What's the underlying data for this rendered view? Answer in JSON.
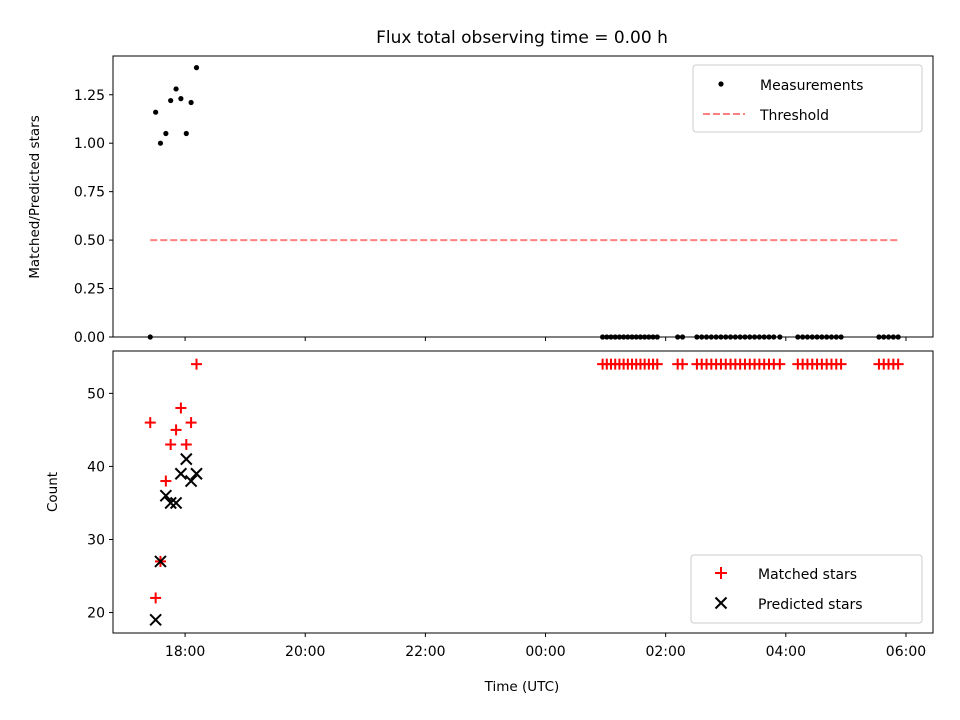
{
  "chart_data": {
    "title": "Flux total observing time = 0.00 h",
    "xlabel": "Time (UTC)",
    "x_unit": "hours since 00:00 (negative = previous evening)",
    "xlim": [
      -7.2,
      6.45
    ],
    "xticks": [
      {
        "value": -6,
        "label": "18:00"
      },
      {
        "value": -4,
        "label": "20:00"
      },
      {
        "value": -2,
        "label": "22:00"
      },
      {
        "value": 0,
        "label": "00:00"
      },
      {
        "value": 2,
        "label": "02:00"
      },
      {
        "value": 4,
        "label": "04:00"
      },
      {
        "value": 6,
        "label": "06:00"
      }
    ],
    "top": {
      "type": "scatter",
      "ylabel": "Matched/Predicted stars",
      "ylim": [
        0,
        1.45
      ],
      "yticks": [
        {
          "value": 0,
          "label": "0.00"
        },
        {
          "value": 0.25,
          "label": "0.25"
        },
        {
          "value": 0.5,
          "label": "0.50"
        },
        {
          "value": 0.75,
          "label": "0.75"
        },
        {
          "value": 1.0,
          "label": "1.00"
        },
        {
          "value": 1.25,
          "label": "1.25"
        }
      ],
      "legend": {
        "position": "top-right",
        "entries": [
          "Measurements",
          "Threshold"
        ]
      },
      "series": [
        {
          "name": "Measurements",
          "color": "#000000",
          "marker": "dot",
          "points": [
            [
              -6.58,
              0.0
            ],
            [
              -6.49,
              1.16
            ],
            [
              -6.41,
              1.0
            ],
            [
              -6.32,
              1.05
            ],
            [
              -6.24,
              1.22
            ],
            [
              -6.15,
              1.28
            ],
            [
              -6.07,
              1.23
            ],
            [
              -5.98,
              1.05
            ],
            [
              -5.9,
              1.21
            ],
            [
              -5.81,
              1.39
            ],
            [
              0.95,
              0.0
            ],
            [
              1.02,
              0.0
            ],
            [
              1.09,
              0.0
            ],
            [
              1.16,
              0.0
            ],
            [
              1.23,
              0.0
            ],
            [
              1.3,
              0.0
            ],
            [
              1.37,
              0.0
            ],
            [
              1.44,
              0.0
            ],
            [
              1.51,
              0.0
            ],
            [
              1.58,
              0.0
            ],
            [
              1.65,
              0.0
            ],
            [
              1.72,
              0.0
            ],
            [
              1.79,
              0.0
            ],
            [
              1.86,
              0.0
            ],
            [
              2.2,
              0.0
            ],
            [
              2.28,
              0.0
            ],
            [
              2.52,
              0.0
            ],
            [
              2.6,
              0.0
            ],
            [
              2.68,
              0.0
            ],
            [
              2.76,
              0.0
            ],
            [
              2.84,
              0.0
            ],
            [
              2.92,
              0.0
            ],
            [
              3.0,
              0.0
            ],
            [
              3.08,
              0.0
            ],
            [
              3.16,
              0.0
            ],
            [
              3.24,
              0.0
            ],
            [
              3.32,
              0.0
            ],
            [
              3.4,
              0.0
            ],
            [
              3.48,
              0.0
            ],
            [
              3.56,
              0.0
            ],
            [
              3.64,
              0.0
            ],
            [
              3.72,
              0.0
            ],
            [
              3.8,
              0.0
            ],
            [
              3.9,
              0.0
            ],
            [
              4.2,
              0.0
            ],
            [
              4.28,
              0.0
            ],
            [
              4.36,
              0.0
            ],
            [
              4.44,
              0.0
            ],
            [
              4.52,
              0.0
            ],
            [
              4.6,
              0.0
            ],
            [
              4.68,
              0.0
            ],
            [
              4.76,
              0.0
            ],
            [
              4.84,
              0.0
            ],
            [
              4.92,
              0.0
            ],
            [
              5.55,
              0.0
            ],
            [
              5.63,
              0.0
            ],
            [
              5.71,
              0.0
            ],
            [
              5.79,
              0.0
            ],
            [
              5.87,
              0.0
            ]
          ]
        },
        {
          "name": "Threshold",
          "color": "#ff8080",
          "style": "dashed",
          "points": [
            [
              -6.58,
              0.5
            ],
            [
              5.87,
              0.5
            ]
          ]
        }
      ]
    },
    "bottom": {
      "type": "scatter",
      "ylabel": "Count",
      "ylim": [
        17.2,
        55.8
      ],
      "yticks": [
        {
          "value": 20,
          "label": "20"
        },
        {
          "value": 30,
          "label": "30"
        },
        {
          "value": 40,
          "label": "40"
        },
        {
          "value": 50,
          "label": "50"
        }
      ],
      "legend": {
        "position": "bottom-right",
        "entries": [
          "Matched stars",
          "Predicted stars"
        ]
      },
      "series": [
        {
          "name": "Matched stars",
          "color": "#ff0000",
          "marker": "plus",
          "points": [
            [
              -6.58,
              46
            ],
            [
              -6.49,
              22
            ],
            [
              -6.41,
              27
            ],
            [
              -6.32,
              38
            ],
            [
              -6.24,
              43
            ],
            [
              -6.15,
              45
            ],
            [
              -6.07,
              48
            ],
            [
              -5.98,
              43
            ],
            [
              -5.9,
              46
            ],
            [
              -5.81,
              54
            ],
            [
              0.95,
              54
            ],
            [
              1.02,
              54
            ],
            [
              1.09,
              54
            ],
            [
              1.16,
              54
            ],
            [
              1.23,
              54
            ],
            [
              1.3,
              54
            ],
            [
              1.37,
              54
            ],
            [
              1.44,
              54
            ],
            [
              1.51,
              54
            ],
            [
              1.58,
              54
            ],
            [
              1.65,
              54
            ],
            [
              1.72,
              54
            ],
            [
              1.79,
              54
            ],
            [
              1.86,
              54
            ],
            [
              2.2,
              54
            ],
            [
              2.28,
              54
            ],
            [
              2.52,
              54
            ],
            [
              2.6,
              54
            ],
            [
              2.68,
              54
            ],
            [
              2.76,
              54
            ],
            [
              2.84,
              54
            ],
            [
              2.92,
              54
            ],
            [
              3.0,
              54
            ],
            [
              3.08,
              54
            ],
            [
              3.16,
              54
            ],
            [
              3.24,
              54
            ],
            [
              3.32,
              54
            ],
            [
              3.4,
              54
            ],
            [
              3.48,
              54
            ],
            [
              3.56,
              54
            ],
            [
              3.64,
              54
            ],
            [
              3.72,
              54
            ],
            [
              3.8,
              54
            ],
            [
              3.9,
              54
            ],
            [
              4.2,
              54
            ],
            [
              4.28,
              54
            ],
            [
              4.36,
              54
            ],
            [
              4.44,
              54
            ],
            [
              4.52,
              54
            ],
            [
              4.6,
              54
            ],
            [
              4.68,
              54
            ],
            [
              4.76,
              54
            ],
            [
              4.84,
              54
            ],
            [
              4.92,
              54
            ],
            [
              5.55,
              54
            ],
            [
              5.63,
              54
            ],
            [
              5.71,
              54
            ],
            [
              5.79,
              54
            ],
            [
              5.87,
              54
            ]
          ]
        },
        {
          "name": "Predicted stars",
          "color": "#000000",
          "marker": "x",
          "points": [
            [
              -6.49,
              19
            ],
            [
              -6.41,
              27
            ],
            [
              -6.32,
              36
            ],
            [
              -6.24,
              35
            ],
            [
              -6.15,
              35
            ],
            [
              -6.07,
              39
            ],
            [
              -5.98,
              41
            ],
            [
              -5.9,
              38
            ],
            [
              -5.81,
              39
            ]
          ]
        }
      ]
    }
  }
}
